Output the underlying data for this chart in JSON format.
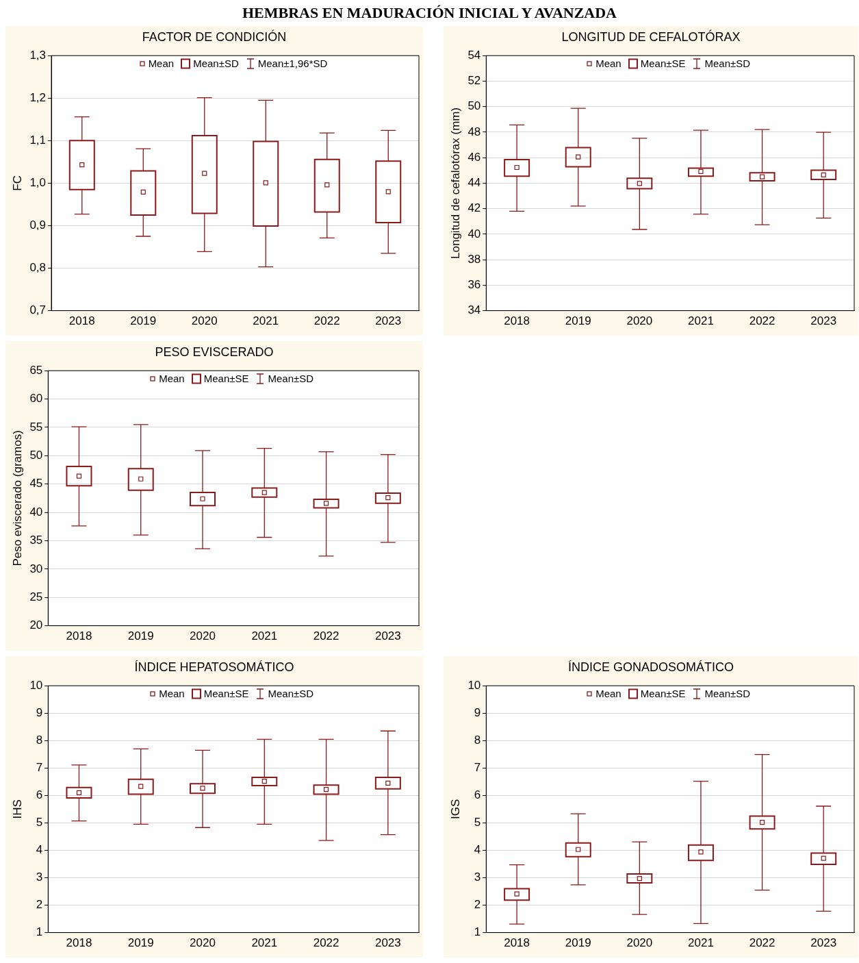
{
  "chart_data": [
    {
      "type": "box",
      "title": "HEMBRAS EN MADURACIÓN INICIAL Y AVANZADA",
      "subtitle": "FACTOR DE CONDICIÓN",
      "ylabel": "FC",
      "categories": [
        "2018",
        "2019",
        "2020",
        "2021",
        "2022",
        "2023"
      ],
      "color": "#8b1a1a",
      "ylim": [
        0.7,
        1.3
      ],
      "yticks": [
        {
          "value": 0.7,
          "label": "0,7"
        },
        {
          "value": 0.8,
          "label": "0,8"
        },
        {
          "value": 0.9,
          "label": "0,9"
        },
        {
          "value": 1.0,
          "label": "1,0"
        },
        {
          "value": 1.1,
          "label": "1,1"
        },
        {
          "value": 1.2,
          "label": "1,2"
        },
        {
          "value": 1.3,
          "label": "1,3"
        }
      ],
      "grid": "y",
      "annotations": [
        "Mean",
        "Mean±SD",
        "Mean±1,96*SD"
      ],
      "boxes": [
        {
          "low": 0.927,
          "q1": 0.985,
          "median": 1.043,
          "q3": 1.1,
          "high": 1.156
        },
        {
          "low": 0.875,
          "q1": 0.925,
          "median": 0.979,
          "q3": 1.029,
          "high": 1.081
        },
        {
          "low": 0.839,
          "q1": 0.929,
          "median": 1.023,
          "q3": 1.112,
          "high": 1.201
        },
        {
          "low": 0.803,
          "q1": 0.899,
          "median": 1.001,
          "q3": 1.098,
          "high": 1.195
        },
        {
          "low": 0.871,
          "q1": 0.932,
          "median": 0.996,
          "q3": 1.056,
          "high": 1.118
        },
        {
          "low": 0.835,
          "q1": 0.907,
          "median": 0.98,
          "q3": 1.052,
          "high": 1.124
        }
      ]
    },
    {
      "type": "box",
      "subtitle": "LONGITUD DE CEFALOTÓRAX",
      "ylabel": "Longitud de cefalotórax (mm)",
      "categories": [
        "2018",
        "2019",
        "2020",
        "2021",
        "2022",
        "2023"
      ],
      "color": "#8b1a1a",
      "ylim": [
        34,
        54
      ],
      "yticks": [
        34,
        36,
        38,
        40,
        42,
        44,
        46,
        48,
        50,
        52,
        54
      ],
      "grid": "y",
      "annotations": [
        "Mean",
        "Mean±SE",
        "Mean±SD"
      ],
      "boxes": [
        {
          "low": 41.8,
          "q1": 44.55,
          "median": 45.23,
          "q3": 45.85,
          "high": 48.57
        },
        {
          "low": 42.2,
          "q1": 45.28,
          "median": 46.06,
          "q3": 46.79,
          "high": 49.87
        },
        {
          "low": 40.37,
          "q1": 43.56,
          "median": 43.97,
          "q3": 44.39,
          "high": 47.52
        },
        {
          "low": 41.57,
          "q1": 44.55,
          "median": 44.91,
          "q3": 45.17,
          "high": 48.15
        },
        {
          "low": 40.74,
          "q1": 44.18,
          "median": 44.5,
          "q3": 44.81,
          "high": 48.2
        },
        {
          "low": 41.26,
          "q1": 44.29,
          "median": 44.65,
          "q3": 45.02,
          "high": 47.99
        }
      ]
    },
    {
      "type": "box",
      "subtitle": "PESO EVISCERADO",
      "ylabel": "Peso eviscerado (gramos)",
      "categories": [
        "2018",
        "2019",
        "2020",
        "2021",
        "2022",
        "2023"
      ],
      "color": "#8b1a1a",
      "ylim": [
        20,
        65
      ],
      "yticks": [
        20,
        25,
        30,
        35,
        40,
        45,
        50,
        55,
        60,
        65
      ],
      "grid": "y",
      "annotations": [
        "Mean",
        "Mean±SE",
        "Mean±SD"
      ],
      "boxes": [
        {
          "low": 37.6,
          "q1": 44.7,
          "median": 46.4,
          "q3": 48.1,
          "high": 55.1
        },
        {
          "low": 36.0,
          "q1": 43.9,
          "median": 45.9,
          "q3": 47.7,
          "high": 55.5
        },
        {
          "low": 33.6,
          "q1": 41.2,
          "median": 42.4,
          "q3": 43.5,
          "high": 50.9
        },
        {
          "low": 35.6,
          "q1": 42.7,
          "median": 43.5,
          "q3": 44.3,
          "high": 51.3
        },
        {
          "low": 32.3,
          "q1": 40.8,
          "median": 41.6,
          "q3": 42.3,
          "high": 50.7
        },
        {
          "low": 34.7,
          "q1": 41.6,
          "median": 42.6,
          "q3": 43.4,
          "high": 50.2
        }
      ]
    },
    {
      "type": "box",
      "subtitle": "ÍNDICE HEPATOSOMÁTICO",
      "ylabel": "IHS",
      "categories": [
        "2018",
        "2019",
        "2020",
        "2021",
        "2022",
        "2023"
      ],
      "color": "#8b1a1a",
      "ylim": [
        1,
        10
      ],
      "yticks": [
        1,
        2,
        3,
        4,
        5,
        6,
        7,
        8,
        9,
        10
      ],
      "grid": "y",
      "annotations": [
        "Mean",
        "Mean±SE",
        "Mean±SD"
      ],
      "boxes": [
        {
          "low": 5.07,
          "q1": 5.91,
          "median": 6.1,
          "q3": 6.29,
          "high": 7.11
        },
        {
          "low": 4.95,
          "q1": 6.05,
          "median": 6.33,
          "q3": 6.59,
          "high": 7.7
        },
        {
          "low": 4.83,
          "q1": 6.08,
          "median": 6.26,
          "q3": 6.43,
          "high": 7.65
        },
        {
          "low": 4.95,
          "q1": 6.36,
          "median": 6.52,
          "q3": 6.66,
          "high": 8.05
        },
        {
          "low": 4.36,
          "q1": 6.05,
          "median": 6.22,
          "q3": 6.38,
          "high": 8.05
        },
        {
          "low": 4.57,
          "q1": 6.24,
          "median": 6.45,
          "q3": 6.66,
          "high": 8.35
        }
      ]
    },
    {
      "type": "box",
      "subtitle": "ÍNDICE GONADOSOMÁTICO",
      "ylabel": "IGS",
      "categories": [
        "2018",
        "2019",
        "2020",
        "2021",
        "2022",
        "2023"
      ],
      "color": "#8b1a1a",
      "ylim": [
        1,
        10
      ],
      "yticks": [
        1,
        2,
        3,
        4,
        5,
        6,
        7,
        8,
        9,
        10
      ],
      "grid": "y",
      "annotations": [
        "Mean",
        "Mean±SE",
        "Mean±SD"
      ],
      "boxes": [
        {
          "low": 1.31,
          "q1": 2.18,
          "median": 2.41,
          "q3": 2.6,
          "high": 3.47
        },
        {
          "low": 2.74,
          "q1": 3.77,
          "median": 4.03,
          "q3": 4.27,
          "high": 5.33
        },
        {
          "low": 1.66,
          "q1": 2.81,
          "median": 2.97,
          "q3": 3.14,
          "high": 4.31
        },
        {
          "low": 1.33,
          "q1": 3.63,
          "median": 3.94,
          "q3": 4.19,
          "high": 6.52
        },
        {
          "low": 2.55,
          "q1": 4.78,
          "median": 5.02,
          "q3": 5.25,
          "high": 7.49
        },
        {
          "low": 1.78,
          "q1": 3.49,
          "median": 3.71,
          "q3": 3.9,
          "high": 5.61
        }
      ]
    }
  ]
}
